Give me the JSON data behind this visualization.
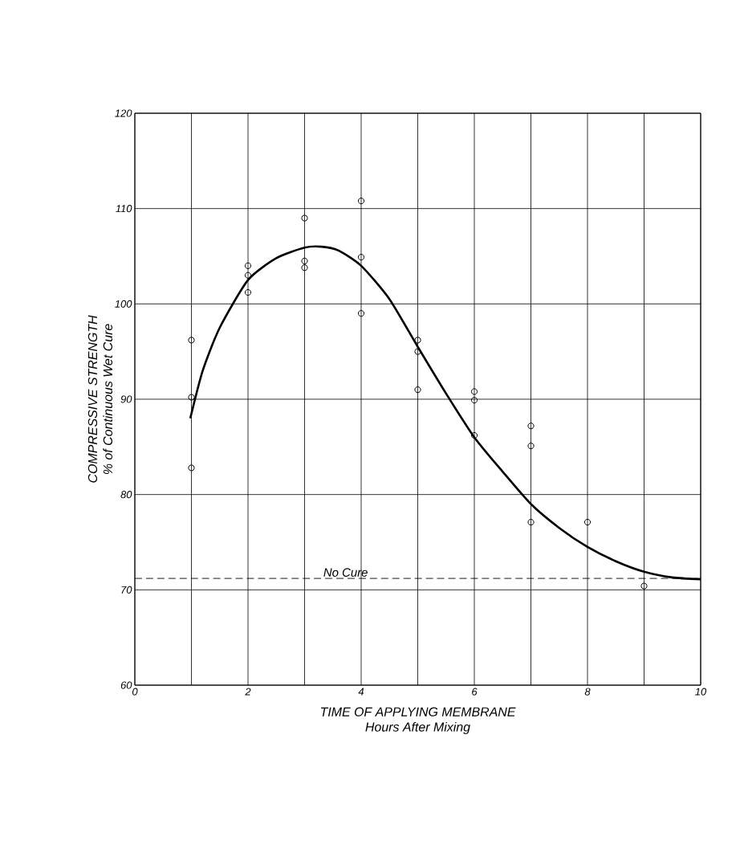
{
  "chart_data": {
    "type": "scatter",
    "xlabel": "TIME OF APPLYING MEMBRANE\nHours After Mixing",
    "ylabel": "COMPRESSIVE STRENGTH\n% of Continuous Wet Cure",
    "xlim": [
      0,
      10
    ],
    "ylim": [
      60,
      120
    ],
    "xticks": [
      0,
      2,
      4,
      6,
      8,
      10
    ],
    "yticks": [
      60,
      70,
      80,
      90,
      100,
      110,
      120
    ],
    "grid": true,
    "marker": "circle",
    "series": [
      {
        "color": "#000000",
        "x": [
          1,
          1,
          1,
          2,
          2,
          2,
          3,
          3,
          3,
          4,
          4,
          4,
          5,
          5,
          5,
          6,
          6,
          6,
          7,
          7,
          7,
          8,
          9
        ],
        "values": [
          96.2,
          90.2,
          82.8,
          104,
          103,
          101.2,
          109,
          104.5,
          103.8,
          110.8,
          104.9,
          99,
          96.2,
          95,
          91,
          90.8,
          89.9,
          86.2,
          87.2,
          85.1,
          77.1,
          77.1,
          70.4
        ]
      },
      {
        "type": "line",
        "color": "#000000",
        "marker": "none",
        "line_style": "solid",
        "x": [
          0.98,
          1.2,
          1.5,
          2,
          2.5,
          3,
          3.3,
          3.6,
          4,
          4.5,
          5,
          5.5,
          6,
          6.5,
          7,
          7.5,
          8,
          8.5,
          9,
          9.5,
          10
        ],
        "values": [
          88,
          93,
          97.5,
          102.5,
          104.8,
          105.9,
          106,
          105.6,
          104,
          100.5,
          95.5,
          90.6,
          86,
          82.4,
          79,
          76.5,
          74.5,
          73,
          71.9,
          71.3,
          71.1
        ]
      }
    ],
    "ref_lines": [
      {
        "axis": "y",
        "value": 71.2,
        "label": "No Cure",
        "line_style": "dashed"
      }
    ]
  }
}
